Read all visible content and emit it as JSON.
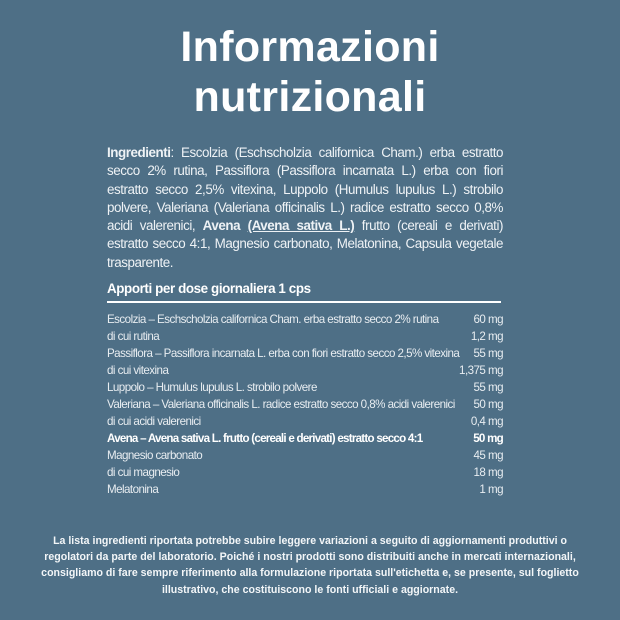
{
  "title": {
    "line1": "Informazioni",
    "line2": "nutrizionali"
  },
  "ingredients": {
    "label": "Ingredienti",
    "text1": ": Escolzia (Eschscholzia californica Cham.) erba estratto secco 2% rutina, Passiflora (Passiflora incarnata L.) erba con fiori estratto secco 2,5% vitexina, Luppolo (Humulus lupulus L.) strobilo polvere, Valeriana (Valeriana officinalis L.) radice estratto secco 0,8% acidi valerenici, ",
    "avena_bold": "Avena",
    "avena_underlined": "(Avena sativa L.)",
    "text2": " frutto (cereali e derivati) estratto secco 4:1, Magnesio carbonato, Melatonina, Capsula vegetale trasparente."
  },
  "apporti_heading": "Apporti per dose giornaliera 1 cps",
  "table": [
    {
      "name": "Escolzia – Eschscholzia californica Cham. erba estratto secco 2% rutina",
      "value": "60 mg"
    },
    {
      "name": "di cui rutina",
      "value": "1,2 mg"
    },
    {
      "name": "Passiflora – Passiflora incarnata L. erba con fiori estratto secco 2,5% vitexina",
      "value": "55 mg"
    },
    {
      "name": "di cui vitexina",
      "value": "1,375 mg"
    },
    {
      "name": "Luppolo – Humulus lupulus L. strobilo polvere",
      "value": "55 mg"
    },
    {
      "name": "Valeriana – Valeriana officinalis L. radice estratto secco 0,8% acidi valerenici",
      "value": "50 mg"
    },
    {
      "name": "di cui acidi valerenici",
      "value": "0,4 mg"
    },
    {
      "name": "Avena – Avena sativa L. frutto (cereali e derivati) estratto secco 4:1",
      "value": "50 mg",
      "bold": true
    },
    {
      "name": "Magnesio carbonato",
      "value": "45 mg"
    },
    {
      "name": "di cui magnesio",
      "value": "18 mg"
    },
    {
      "name": "Melatonina",
      "value": "1 mg"
    }
  ],
  "footer": "La lista ingredienti riportata potrebbe subire leggere variazioni a seguito di aggiornamenti produttivi o regolatori da parte del laboratorio. Poiché i nostri prodotti sono distribuiti anche in mercati internazionali, consigliamo di fare sempre riferimento alla formulazione riportata sull'etichetta e, se presente, sul foglietto illustrativo, che costituiscono le fonti ufficiali e aggiornate.",
  "colors": {
    "background": "#4e6f86",
    "text": "#ffffff"
  }
}
